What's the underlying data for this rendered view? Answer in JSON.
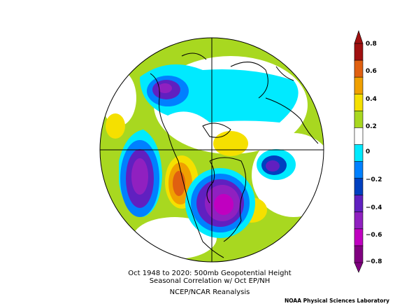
{
  "caption": {
    "line1": "Oct 1948 to 2020: 500mb Geopotential Height",
    "line2": "Seasonal Correlation w/ Oct EP/NH",
    "line3": "NCEP/NCAR Reanalysis"
  },
  "credit": "NOAA Physical Sciences Laboratory",
  "colorbar": {
    "tick_labels": [
      "0.8",
      "0.6",
      "0.4",
      "0.2",
      "0",
      "−0.2",
      "−0.4",
      "−0.6",
      "−0.8"
    ],
    "colors": [
      "#a01010",
      "#e06010",
      "#f0a000",
      "#f5e000",
      "#a8d820",
      "#ffffff",
      "#00eaff",
      "#0080ff",
      "#0040c0",
      "#6020c0",
      "#9020c0",
      "#c000c0",
      "#800080"
    ]
  },
  "map": {
    "projection": "north-polar-stereographic",
    "field": "correlation"
  }
}
